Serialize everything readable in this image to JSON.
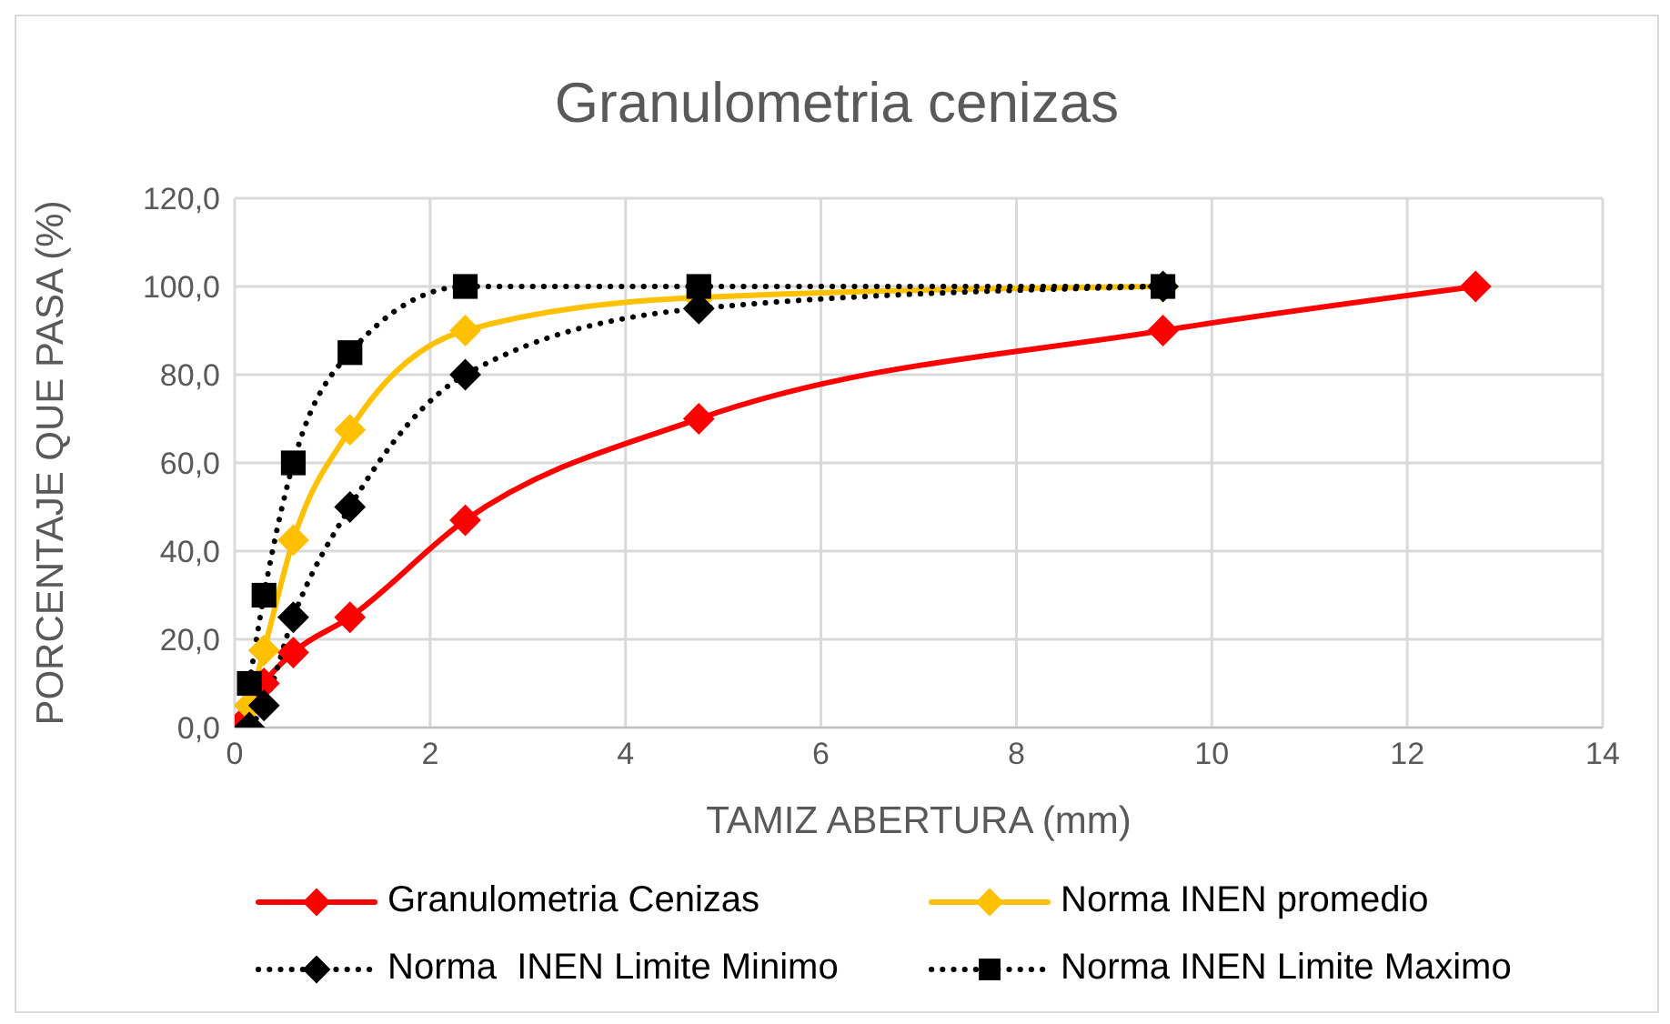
{
  "chart_data": {
    "type": "line",
    "title": "Granulometria cenizas",
    "xlabel": "TAMIZ ABERTURA (mm)",
    "ylabel": "PORCENTAJE QUE PASA  (%)",
    "xlim": [
      0,
      14
    ],
    "xticks": [
      0,
      2,
      4,
      6,
      8,
      10,
      12,
      14
    ],
    "ylim": [
      0,
      120
    ],
    "yticks": [
      {
        "value": 0,
        "label": "0,0"
      },
      {
        "value": 20,
        "label": "20,0"
      },
      {
        "value": 40,
        "label": "40,0"
      },
      {
        "value": 60,
        "label": "60,0"
      },
      {
        "value": 80,
        "label": "80,0"
      },
      {
        "value": 100,
        "label": "100,0"
      },
      {
        "value": 120,
        "label": "120,0"
      }
    ],
    "grid": true,
    "legend": "bottom",
    "series": [
      {
        "name": "Granulometria Cenizas",
        "color": "#ff0000",
        "marker": "diamond",
        "line_style": "solid",
        "x": [
          0.075,
          0.3,
          0.6,
          1.18,
          2.36,
          4.75,
          9.5,
          12.7
        ],
        "values": [
          1,
          10,
          17,
          25,
          47,
          70,
          90,
          100
        ]
      },
      {
        "name": "Norma INEN promedio",
        "color": "#ffc000",
        "marker": "diamond",
        "line_style": "solid",
        "x": [
          0.15,
          0.3,
          0.6,
          1.18,
          2.36,
          4.75,
          9.5
        ],
        "values": [
          5,
          17.5,
          42.5,
          67.5,
          90,
          97.5,
          100
        ]
      },
      {
        "name": "Norma  INEN Limite Minimo",
        "color": "#000000",
        "marker": "diamond",
        "line_style": "dotted",
        "x": [
          0.15,
          0.3,
          0.6,
          1.18,
          2.36,
          4.75,
          9.5
        ],
        "values": [
          0,
          5,
          25,
          50,
          80,
          95,
          100
        ]
      },
      {
        "name": "Norma INEN Limite Maximo",
        "color": "#000000",
        "marker": "square",
        "line_style": "dotted",
        "x": [
          0.15,
          0.3,
          0.6,
          1.18,
          2.36,
          4.75,
          9.5
        ],
        "values": [
          10,
          30,
          60,
          85,
          100,
          100,
          100
        ]
      }
    ]
  }
}
